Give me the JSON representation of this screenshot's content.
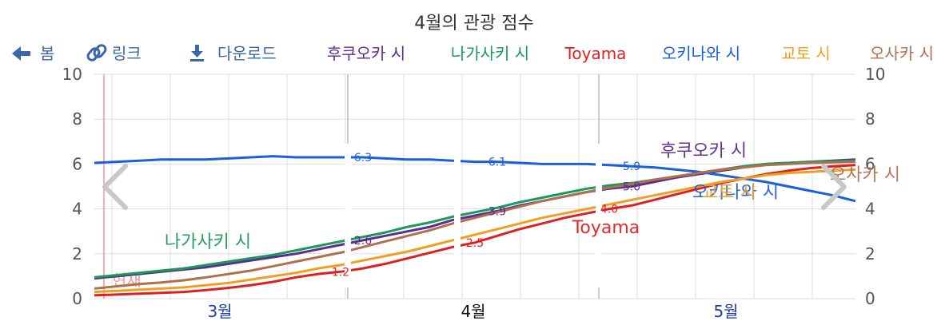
{
  "toolbar": {
    "back_label": "봄",
    "link_label": "링크",
    "download_label": "다운로드"
  },
  "colors": {
    "toolbar_text": "#3a67a8",
    "grid": "#dddddd",
    "now_line": "#f07f7f",
    "month_label": "#1a3f9e"
  },
  "chart_data": {
    "type": "line",
    "title": "4월의 관광 점수",
    "ylim": [
      0,
      10
    ],
    "yticks": [
      0,
      2,
      4,
      6,
      8,
      10
    ],
    "x_month_labels": [
      "3월",
      "4월",
      "5월"
    ],
    "now_label": "현재",
    "grid": true,
    "legend_position": "top",
    "series": [
      {
        "name": "후쿠오카 시",
        "color": "#5b2d8e",
        "values": [
          0.9,
          1.0,
          1.1,
          1.2,
          1.3,
          1.4,
          1.55,
          1.7,
          1.85,
          2.0,
          2.2,
          2.4,
          2.6,
          2.8,
          3.0,
          3.2,
          3.5,
          3.7,
          3.9,
          4.15,
          4.35,
          4.55,
          4.75,
          4.9,
          5.0,
          5.2,
          5.4,
          5.55,
          5.7,
          5.85,
          6.0,
          6.05,
          6.1,
          6.15,
          6.2
        ],
        "labels": [
          {
            "i": 12,
            "text": "2.6"
          },
          {
            "i": 18,
            "text": "3.9"
          },
          {
            "i": 24,
            "text": "5.0"
          }
        ],
        "inline_label": {
          "text": "후쿠오카 시",
          "i": 27
        }
      },
      {
        "name": "나가사키 시",
        "color": "#1a9a5a",
        "values": [
          0.95,
          1.05,
          1.15,
          1.25,
          1.35,
          1.5,
          1.65,
          1.8,
          1.95,
          2.15,
          2.35,
          2.55,
          2.75,
          2.95,
          3.2,
          3.4,
          3.65,
          3.85,
          4.05,
          4.3,
          4.5,
          4.7,
          4.9,
          5.05,
          5.15,
          5.3,
          5.45,
          5.6,
          5.75,
          5.9,
          6.0,
          6.05,
          6.1,
          6.12,
          6.15
        ],
        "labels": [],
        "inline_label": {
          "text": "나가사키 시",
          "i": 3
        }
      },
      {
        "name": "Toyama",
        "color": "#e02020",
        "values": [
          0.15,
          0.18,
          0.22,
          0.26,
          0.3,
          0.38,
          0.48,
          0.6,
          0.75,
          0.95,
          1.1,
          1.2,
          1.35,
          1.55,
          1.8,
          2.05,
          2.3,
          2.5,
          2.8,
          3.1,
          3.35,
          3.6,
          3.8,
          4.0,
          4.15,
          4.4,
          4.65,
          4.9,
          5.15,
          5.35,
          5.55,
          5.7,
          5.82,
          5.9,
          5.95
        ],
        "labels": [
          {
            "i": 11,
            "text": "1.2"
          },
          {
            "i": 17,
            "text": "2.5"
          },
          {
            "i": 23,
            "text": "4.0"
          }
        ],
        "inline_label": {
          "text": "Toyama",
          "i": 23
        }
      },
      {
        "name": "오키나와 시",
        "color": "#1a5fe0",
        "values": [
          6.05,
          6.1,
          6.15,
          6.2,
          6.2,
          6.2,
          6.25,
          6.3,
          6.35,
          6.3,
          6.3,
          6.3,
          6.3,
          6.25,
          6.2,
          6.2,
          6.15,
          6.1,
          6.1,
          6.05,
          6.0,
          6.0,
          6.0,
          5.95,
          5.9,
          5.85,
          5.75,
          5.65,
          5.5,
          5.35,
          5.2,
          5.0,
          4.8,
          4.6,
          4.35
        ],
        "labels": [
          {
            "i": 12,
            "text": "6.3"
          },
          {
            "i": 18,
            "text": "6.1"
          },
          {
            "i": 24,
            "text": "5.9"
          }
        ],
        "inline_label": {
          "text": "오키나와 시",
          "i": 27
        }
      },
      {
        "name": "교토 시",
        "color": "#f0a020",
        "values": [
          0.3,
          0.35,
          0.4,
          0.45,
          0.5,
          0.6,
          0.7,
          0.85,
          1.0,
          1.15,
          1.35,
          1.5,
          1.7,
          1.9,
          2.1,
          2.35,
          2.6,
          2.85,
          3.1,
          3.35,
          3.6,
          3.8,
          4.0,
          4.2,
          4.4,
          4.6,
          4.8,
          5.0,
          5.2,
          5.35,
          5.5,
          5.6,
          5.65,
          5.7,
          5.75
        ],
        "labels": [],
        "inline_label": {
          "text": "교토 시",
          "i": 28
        }
      },
      {
        "name": "오사카 시",
        "color": "#b07050",
        "values": [
          0.45,
          0.55,
          0.65,
          0.72,
          0.82,
          0.95,
          1.1,
          1.25,
          1.45,
          1.65,
          1.85,
          2.05,
          2.3,
          2.55,
          2.8,
          3.05,
          3.35,
          3.6,
          3.85,
          4.1,
          4.35,
          4.55,
          4.75,
          4.95,
          5.1,
          5.3,
          5.45,
          5.6,
          5.75,
          5.85,
          5.95,
          6.0,
          6.05,
          6.08,
          6.1
        ],
        "labels": [],
        "inline_label": {
          "text": "오사카 시",
          "i": 33
        }
      }
    ]
  }
}
